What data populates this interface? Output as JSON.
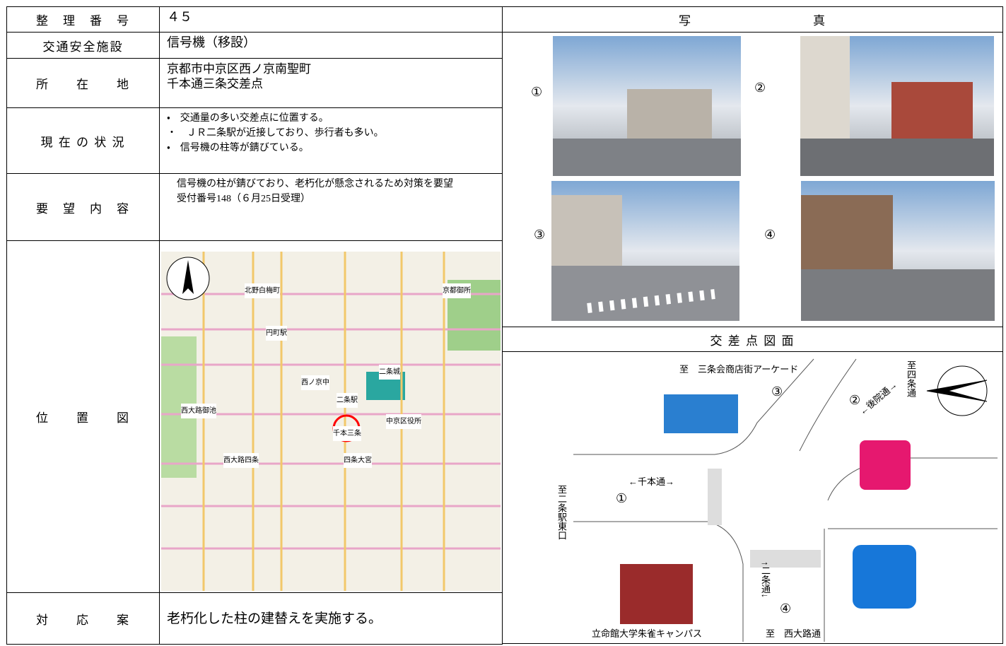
{
  "table": {
    "rows": [
      {
        "label": "整　理　番　号",
        "value": [
          "４５"
        ]
      },
      {
        "label": "交通安全施設",
        "value": [
          "信号機（移設）"
        ]
      },
      {
        "label": "所　　在　　地",
        "value": [
          "京都市中京区西ノ京南聖町",
          "千本通三条交差点"
        ]
      },
      {
        "label": "現 在 の 状 況",
        "value": [
          "・　交通量の多い交差点に位置する。",
          "・　ＪＲ二条駅が近接しており、歩行者も多い。",
          "・　信号機の柱等が錆びている。"
        ]
      },
      {
        "label": "要　望　内　容",
        "value": [
          "　信号機の柱が錆びており、老朽化が懸念されるため対策を要望",
          "　受付番号148（６月25日受理）"
        ]
      },
      {
        "label": "位　　置　　図",
        "value": []
      },
      {
        "label": "対　　応　　案",
        "value": [
          "老朽化した柱の建替えを実施する。"
        ]
      }
    ]
  },
  "photos": {
    "title": "写　　　　　　　　　真",
    "numbers": [
      "①",
      "②",
      "③",
      "④"
    ]
  },
  "map": {
    "labels": [
      "北野白梅町",
      "円町駅",
      "二条駅",
      "千本三条",
      "西ノ京中",
      "西大路御池",
      "四条大宮",
      "西大路四条",
      "中京区役所",
      "京都御所",
      "二条城"
    ]
  },
  "diagram": {
    "title": "交 差 点 図 面",
    "labels": {
      "north": "至　三条会商店街アーケード",
      "east": "至四条通",
      "west": "至二条駅東口",
      "south": "至　西大路通",
      "senbon": "←千本通→",
      "kouin": "←後院通→",
      "nijo": "↑二条通↓",
      "campus": "立命館大学朱雀キャンパス",
      "m1": "①",
      "m2": "②",
      "m3": "③",
      "m4": "④"
    }
  }
}
